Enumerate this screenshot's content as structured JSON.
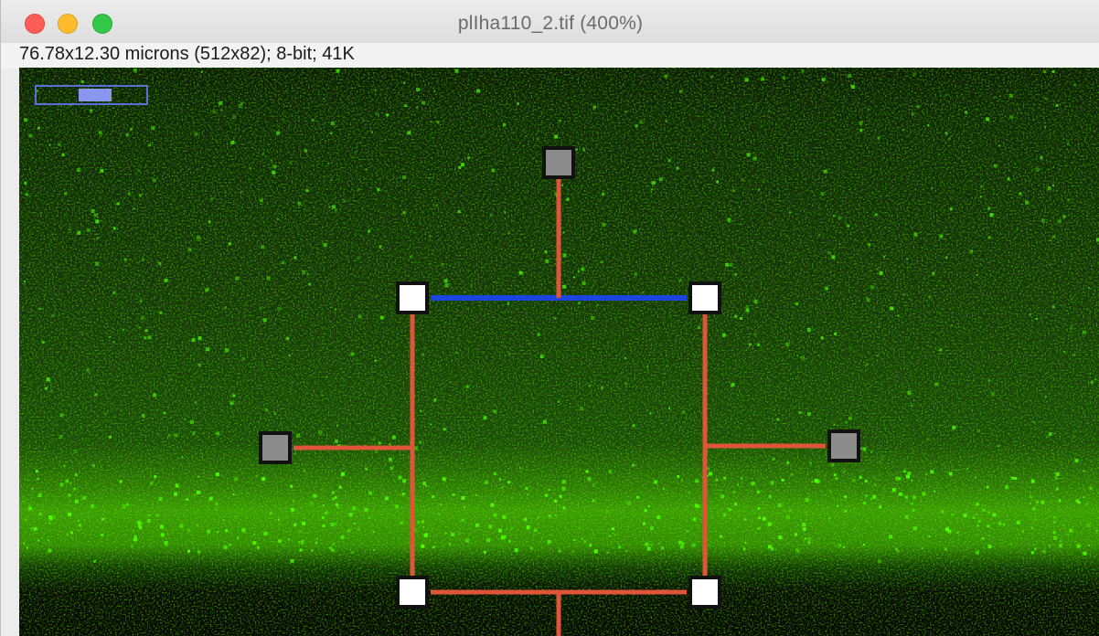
{
  "window": {
    "title": "plIha110_2.tif (400%)",
    "info": "76.78x12.30 microns (512x82); 8-bit; 41K",
    "buttons": {
      "close_icon": "close-dot-icon",
      "minimize_icon": "minimize-dot-icon",
      "zoom_icon": "zoom-dot-icon"
    }
  },
  "image": {
    "channel_color": "#4cff00",
    "background_color": "#050a02",
    "selection_color": "#e0543a",
    "active_edge_color": "#1a45e0",
    "handle_color": "#ffffff",
    "rotation_handle_color": "#8c8c8c"
  }
}
